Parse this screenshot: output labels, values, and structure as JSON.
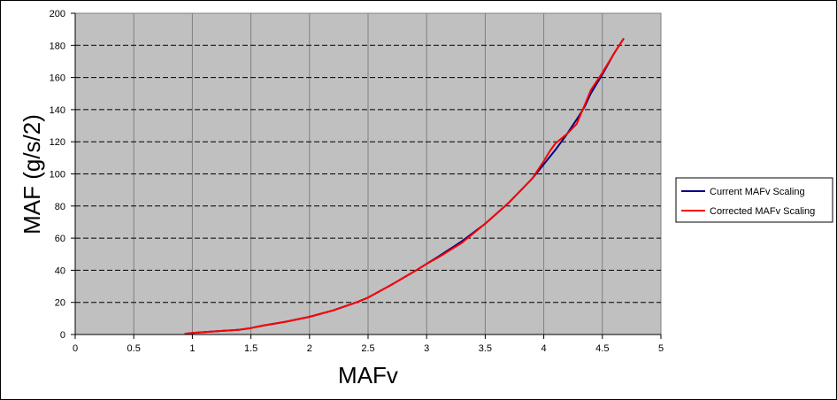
{
  "chart_data": {
    "type": "line",
    "title": "",
    "xlabel": "MAFv",
    "ylabel": "MAF (g/s/2)",
    "xlim": [
      0,
      5
    ],
    "ylim": [
      0,
      200
    ],
    "xticks": [
      0,
      0.5,
      1,
      1.5,
      2,
      2.5,
      3,
      3.5,
      4,
      4.5,
      5
    ],
    "xtick_labels": [
      "0",
      "0.5",
      "1",
      "1.5",
      "2",
      "2.5",
      "3",
      "3.5",
      "4",
      "4.5",
      "5"
    ],
    "yticks": [
      0,
      20,
      40,
      60,
      80,
      100,
      120,
      140,
      160,
      180,
      200
    ],
    "ytick_labels": [
      "0",
      "20",
      "40",
      "60",
      "80",
      "100",
      "120",
      "140",
      "160",
      "180",
      "200"
    ],
    "grid": true,
    "plot_background": "#c0c0c0",
    "legend_position": "right",
    "series": [
      {
        "name": "Current MAFv Scaling",
        "color": "#000080",
        "x": [
          0.94,
          1.0,
          1.2,
          1.4,
          1.5,
          1.6,
          1.8,
          2.0,
          2.2,
          2.4,
          2.5,
          2.7,
          2.9,
          3.0,
          3.1,
          3.3,
          3.5,
          3.7,
          3.9,
          4.0,
          4.1,
          4.2,
          4.3,
          4.35,
          4.4,
          4.5,
          4.6,
          4.68
        ],
        "y": [
          0.5,
          1,
          2,
          3,
          4,
          5.5,
          8,
          11,
          15,
          20,
          23,
          31,
          39.5,
          44,
          48.5,
          58,
          69,
          82,
          97,
          106,
          115,
          125,
          136,
          142,
          150,
          162,
          175,
          184
        ]
      },
      {
        "name": "Corrected MAFv Scaling",
        "color": "#ff0000",
        "x": [
          0.94,
          1.0,
          1.2,
          1.4,
          1.5,
          1.6,
          1.8,
          2.0,
          2.2,
          2.4,
          2.5,
          2.7,
          2.9,
          3.0,
          3.1,
          3.3,
          3.5,
          3.7,
          3.9,
          4.0,
          4.05,
          4.1,
          4.2,
          4.28,
          4.35,
          4.4,
          4.5,
          4.6,
          4.68
        ],
        "y": [
          0.5,
          1,
          2,
          3,
          4,
          5.5,
          8,
          11,
          15,
          20,
          23,
          31,
          39.5,
          44,
          48,
          57,
          69,
          82,
          97,
          108,
          114,
          119,
          125,
          131,
          143,
          152,
          163,
          175,
          184
        ]
      }
    ]
  }
}
